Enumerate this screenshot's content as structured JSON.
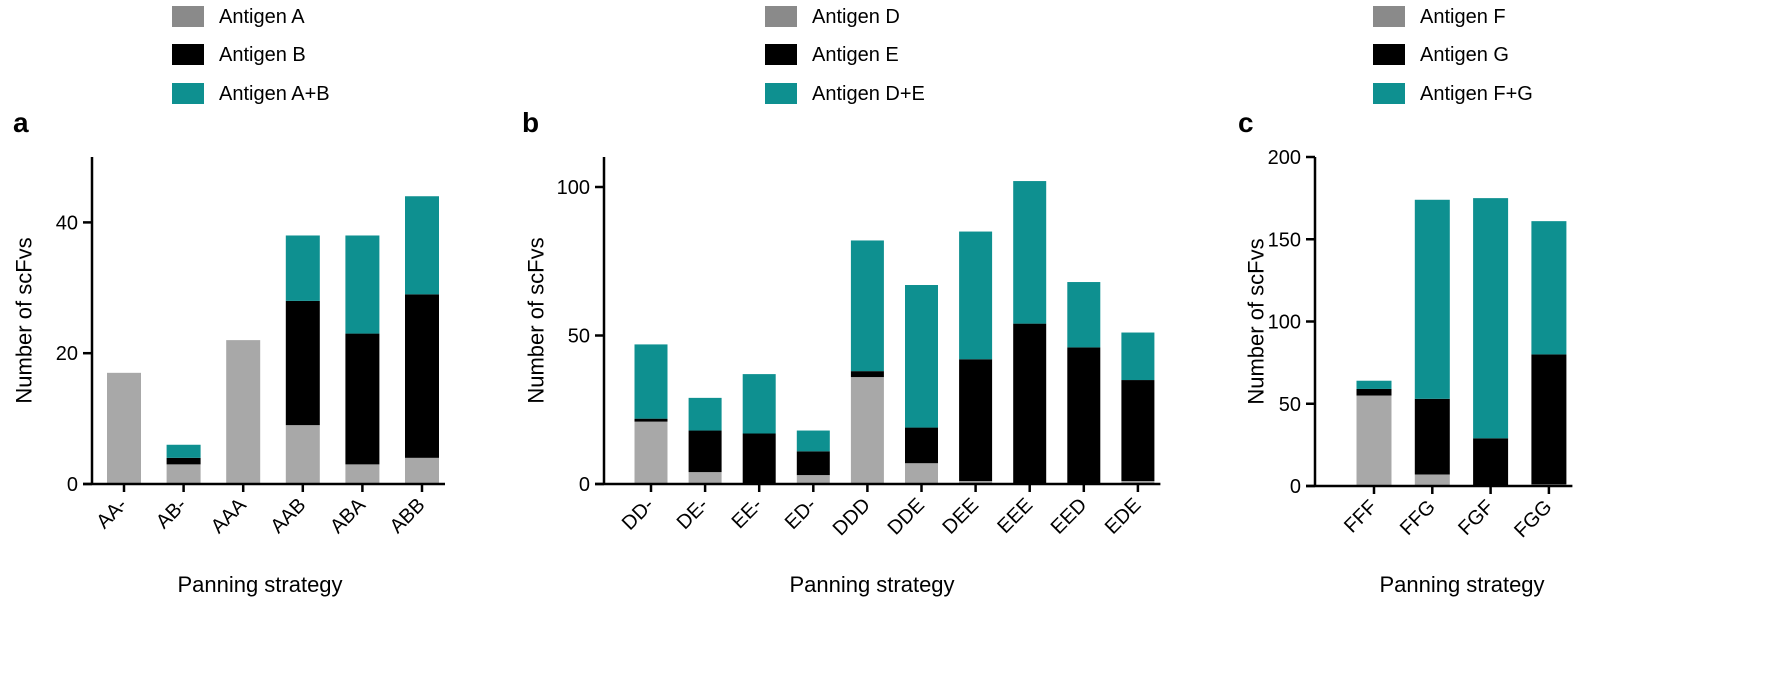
{
  "colors": {
    "grey": "#a8a8a8",
    "legend_grey": "#8a8a8a",
    "black": "#000000",
    "teal": "#0e9090"
  },
  "chart_data": [
    {
      "type": "bar",
      "stacked": true,
      "panel": "a",
      "xlabel": "Panning strategy",
      "ylabel": "Number of scFvs",
      "ylim": [
        0,
        50
      ],
      "yticks": [
        0,
        20,
        40
      ],
      "legend_position": "top",
      "categories": [
        "AA-",
        "AB-",
        "AAA",
        "AAB",
        "ABA",
        "ABB"
      ],
      "series": [
        {
          "name": "Antigen A",
          "values": [
            17,
            3,
            22,
            9,
            3,
            4
          ]
        },
        {
          "name": "Antigen B",
          "values": [
            0,
            1,
            0,
            19,
            20,
            25
          ]
        },
        {
          "name": "Antigen A+B",
          "values": [
            0,
            2,
            0,
            10,
            15,
            15
          ]
        }
      ]
    },
    {
      "type": "bar",
      "stacked": true,
      "panel": "b",
      "xlabel": "Panning strategy",
      "ylabel": "Number of scFvs",
      "ylim": [
        0,
        110
      ],
      "yticks": [
        0,
        50,
        100
      ],
      "legend_position": "top",
      "categories": [
        "DD-",
        "DE-",
        "EE-",
        "ED-",
        "DDD",
        "DDE",
        "DEE",
        "EEE",
        "EED",
        "EDE"
      ],
      "series": [
        {
          "name": "Antigen D",
          "values": [
            21,
            4,
            0,
            3,
            36,
            7,
            1,
            0,
            0,
            1
          ]
        },
        {
          "name": "Antigen E",
          "values": [
            1,
            14,
            17,
            8,
            2,
            12,
            41,
            54,
            46,
            34
          ]
        },
        {
          "name": "Antigen D+E",
          "values": [
            25,
            11,
            20,
            7,
            44,
            48,
            43,
            48,
            22,
            16
          ]
        }
      ]
    },
    {
      "type": "bar",
      "stacked": true,
      "panel": "c",
      "xlabel": "Panning strategy",
      "ylabel": "Number of scFvs",
      "ylim": [
        0,
        200
      ],
      "yticks": [
        0,
        50,
        100,
        150,
        200
      ],
      "legend_position": "top",
      "categories": [
        "FFF",
        "FFG",
        "FGF",
        "FGG"
      ],
      "series": [
        {
          "name": "Antigen F",
          "values": [
            55,
            7,
            0,
            1
          ]
        },
        {
          "name": "Antigen G",
          "values": [
            4,
            46,
            29,
            79
          ]
        },
        {
          "name": "Antigen F+G",
          "values": [
            5,
            121,
            146,
            81
          ]
        }
      ]
    }
  ]
}
